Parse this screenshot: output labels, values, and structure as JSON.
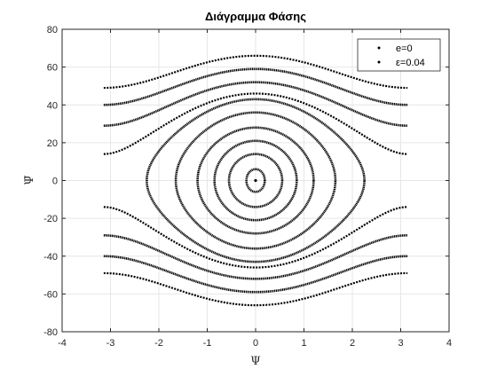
{
  "chart_data": {
    "type": "scatter",
    "title": "Διάγραμμα Φάσης",
    "xlabel": "Ψ",
    "ylabel": "Ψ̇",
    "xlim": [
      -4,
      4
    ],
    "ylim": [
      -80,
      80
    ],
    "xticks": [
      -4,
      -3,
      -2,
      -1,
      0,
      1,
      2,
      3,
      4
    ],
    "yticks": [
      -80,
      -60,
      -40,
      -20,
      0,
      20,
      40,
      60,
      80
    ],
    "xtick_labels": [
      "-4",
      "-3",
      "-2",
      "-1",
      "0",
      "1",
      "2",
      "3",
      "4"
    ],
    "ytick_labels": [
      "-80",
      "-60",
      "-40",
      "-20",
      "0",
      "20",
      "40",
      "60",
      "80"
    ],
    "grid": true,
    "legend_position": "top-right",
    "series": [
      {
        "name": "e=0",
        "marker": "dot",
        "color": "#000000",
        "points": [
          [
            0,
            0
          ]
        ]
      },
      {
        "name": "ε=0.04",
        "marker": "dot",
        "color": "#000000",
        "closed_orbits": [
          {
            "amplitude": 0.19,
            "peak_velocity": 6
          },
          {
            "amplitude": 0.55,
            "peak_velocity": 14
          },
          {
            "amplitude": 0.85,
            "peak_velocity": 21
          },
          {
            "amplitude": 1.2,
            "peak_velocity": 28
          },
          {
            "amplitude": 1.65,
            "peak_velocity": 36
          },
          {
            "amplitude": 2.25,
            "peak_velocity": 43
          }
        ],
        "rotating_orbits": [
          {
            "velocity_at_0": 46,
            "velocity_at_pi": 14
          },
          {
            "velocity_at_0": 52,
            "velocity_at_pi": 29
          },
          {
            "velocity_at_0": 59,
            "velocity_at_pi": 40
          },
          {
            "velocity_at_0": 66,
            "velocity_at_pi": 49
          }
        ],
        "x_range": [
          -3.14,
          3.14
        ]
      }
    ]
  }
}
